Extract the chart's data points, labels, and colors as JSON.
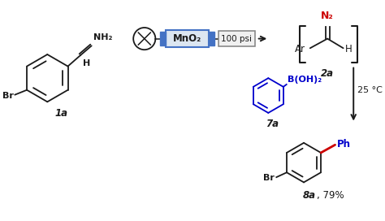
{
  "bg_color": "#ffffff",
  "black": "#1a1a1a",
  "blue": "#0000cc",
  "red": "#cc0000",
  "mno2_fill": "#dce6f1",
  "mno2_edge": "#4472c4",
  "mno2_text": "#1a1a1a",
  "psi_fill": "#f0f0f0",
  "psi_edge": "#808080",
  "blue_conn": "#4472c4",
  "label_1a": "1a",
  "label_2a": "2a",
  "label_7a": "7a",
  "label_mno2": "MnO₂",
  "label_psi": "100 psi",
  "label_temp": "25 °C",
  "label_nh2": "NH₂",
  "label_boh2": "B(OH)₂",
  "label_n2": "N₂",
  "label_ar": "Ar",
  "label_h": "H",
  "label_ph": "Ph",
  "label_br": "Br",
  "label_n": "N",
  "fig_w": 4.74,
  "fig_h": 2.72,
  "dpi": 100
}
